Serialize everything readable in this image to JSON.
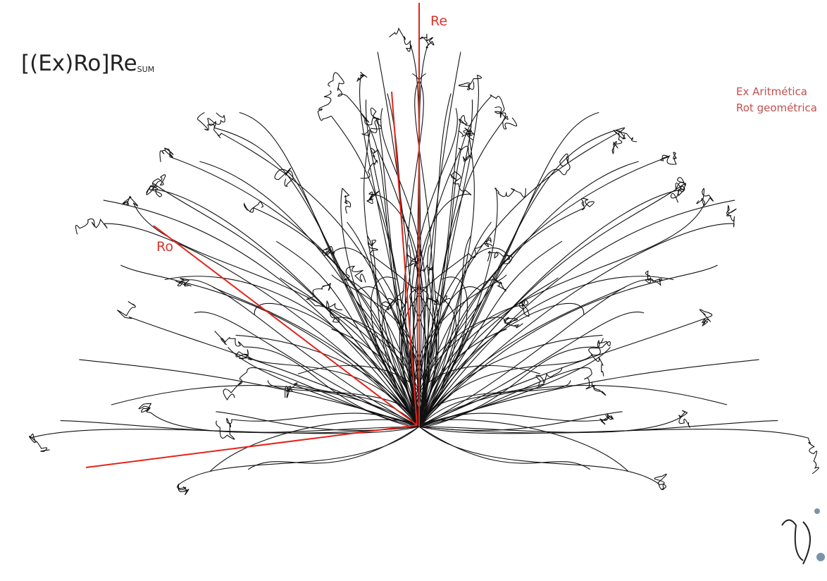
{
  "title": {
    "main": "[(Ex)Ro]Re",
    "subscript": "SUM"
  },
  "axis_labels": {
    "re": "Re",
    "ro": "Ro"
  },
  "legend": {
    "line1": "Ex Aritmética",
    "line2": "Rot geométrica"
  }
}
